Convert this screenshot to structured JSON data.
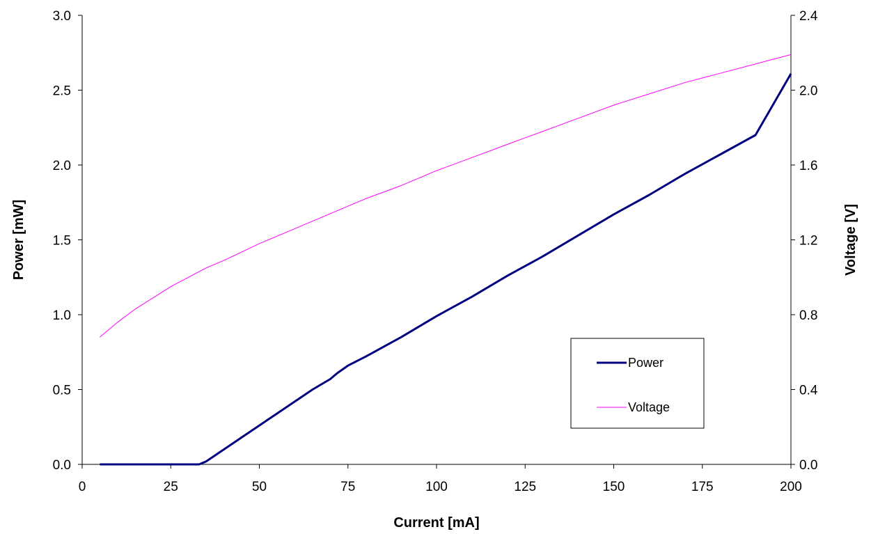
{
  "chart_data": {
    "type": "line",
    "title": "",
    "xlabel": "Current [mA]",
    "ylabel_left": "Power [mW]",
    "ylabel_right": "Voltage [V]",
    "xlim": [
      0,
      200
    ],
    "ylim_left": [
      0,
      3.0
    ],
    "ylim_right": [
      0,
      2.4
    ],
    "x_ticks": [
      "0",
      "25",
      "50",
      "75",
      "100",
      "125",
      "150",
      "175",
      "200"
    ],
    "y_left_ticks": [
      "0.0",
      "0.5",
      "1.0",
      "1.5",
      "2.0",
      "2.5",
      "3.0"
    ],
    "y_right_ticks": [
      "0.0",
      "0.4",
      "0.8",
      "1.2",
      "1.6",
      "2.0",
      "2.4"
    ],
    "grid": false,
    "legend_position": "lower-right",
    "series": [
      {
        "name": "Power",
        "axis": "left",
        "color": "#000080",
        "x": [
          5,
          10,
          15,
          20,
          25,
          30,
          33,
          35,
          40,
          45,
          50,
          55,
          60,
          65,
          70,
          72,
          75,
          80,
          90,
          100,
          110,
          120,
          130,
          140,
          150,
          160,
          170,
          180,
          190,
          200
        ],
        "y": [
          0.0,
          0.0,
          0.0,
          0.0,
          0.0,
          0.0,
          0.0,
          0.02,
          0.1,
          0.18,
          0.26,
          0.34,
          0.42,
          0.5,
          0.57,
          0.61,
          0.66,
          0.72,
          0.85,
          0.99,
          1.12,
          1.26,
          1.39,
          1.53,
          1.67,
          1.8,
          1.94,
          2.07,
          2.2,
          2.61
        ]
      },
      {
        "name": "Voltage",
        "axis": "right",
        "color": "#ff00ff",
        "x": [
          5,
          10,
          15,
          20,
          25,
          30,
          35,
          40,
          50,
          60,
          70,
          75,
          80,
          90,
          100,
          110,
          120,
          130,
          140,
          150,
          160,
          170,
          180,
          190,
          200
        ],
        "y": [
          0.68,
          0.76,
          0.83,
          0.89,
          0.95,
          1.0,
          1.05,
          1.09,
          1.18,
          1.26,
          1.34,
          1.38,
          1.42,
          1.49,
          1.57,
          1.64,
          1.71,
          1.78,
          1.85,
          1.92,
          1.98,
          2.04,
          2.09,
          2.14,
          2.19
        ]
      }
    ]
  }
}
